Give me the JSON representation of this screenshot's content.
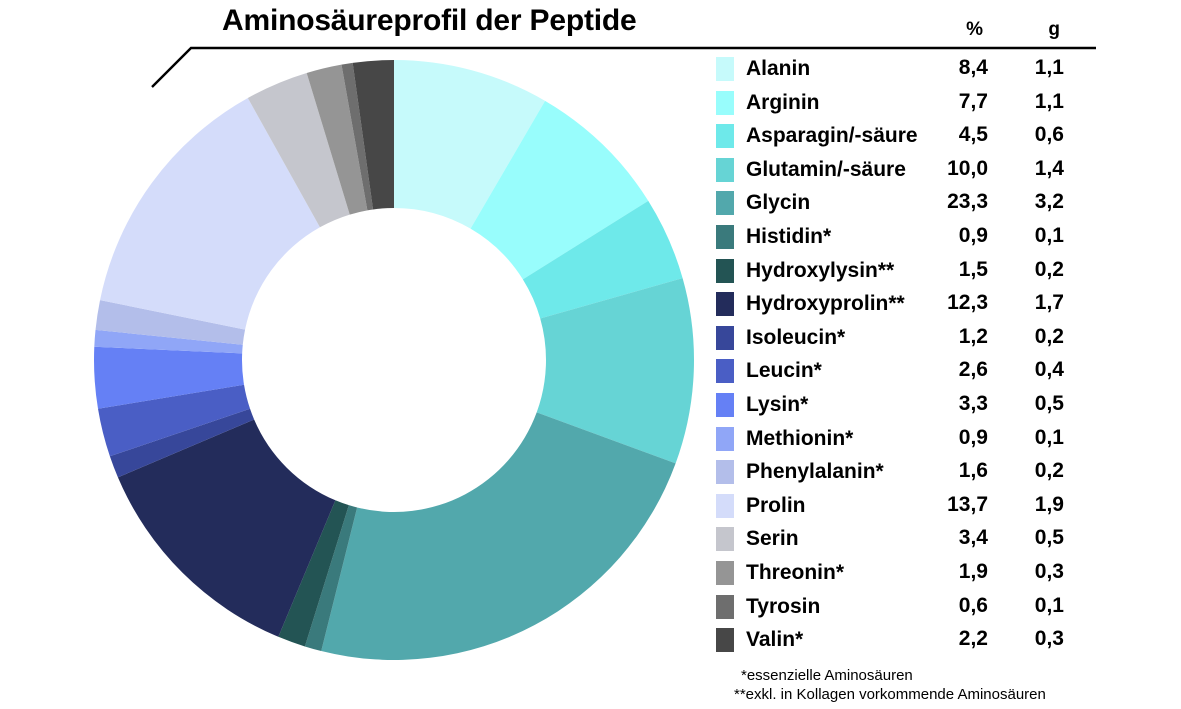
{
  "chart_data": {
    "type": "pie",
    "style": "donut",
    "title": "Aminosäureprofil der Peptide",
    "column_headers": {
      "percent": "%",
      "grams": "g"
    },
    "slices": [
      {
        "name": "Alanin",
        "percent": "8,4",
        "grams": "1,1",
        "value": 8.4,
        "color": "#C6FAFB"
      },
      {
        "name": "Arginin",
        "percent": "7,7",
        "grams": "1,1",
        "value": 7.7,
        "color": "#98FDFC"
      },
      {
        "name": "Asparagin/-säure",
        "percent": "4,5",
        "grams": "0,6",
        "value": 4.5,
        "color": "#6EE9EA"
      },
      {
        "name": "Glutamin/-säure",
        "percent": "10,0",
        "grams": "1,4",
        "value": 10.0,
        "color": "#66D4D5"
      },
      {
        "name": "Glycin",
        "percent": "23,3",
        "grams": "3,2",
        "value": 23.3,
        "color": "#52A8AC"
      },
      {
        "name": "Histidin*",
        "percent": "0,9",
        "grams": "0,1",
        "value": 0.9,
        "color": "#3A7A7C"
      },
      {
        "name": "Hydroxylysin**",
        "percent": "1,5",
        "grams": "0,2",
        "value": 1.5,
        "color": "#235454"
      },
      {
        "name": "Hydroxyprolin**",
        "percent": "12,3",
        "grams": "1,7",
        "value": 12.3,
        "color": "#232C5B"
      },
      {
        "name": "Isoleucin*",
        "percent": "1,2",
        "grams": "0,2",
        "value": 1.2,
        "color": "#37479A"
      },
      {
        "name": "Leucin*",
        "percent": "2,6",
        "grams": "0,4",
        "value": 2.6,
        "color": "#4A5EC5"
      },
      {
        "name": "Lysin*",
        "percent": "3,3",
        "grams": "0,5",
        "value": 3.3,
        "color": "#6580F5"
      },
      {
        "name": "Methionin*",
        "percent": "0,9",
        "grams": "0,1",
        "value": 0.9,
        "color": "#90A6F7"
      },
      {
        "name": "Phenylalanin*",
        "percent": "1,6",
        "grams": "0,2",
        "value": 1.6,
        "color": "#B3BEEA"
      },
      {
        "name": "Prolin",
        "percent": "13,7",
        "grams": "1,9",
        "value": 13.7,
        "color": "#D4DCFA"
      },
      {
        "name": "Serin",
        "percent": "3,4",
        "grams": "0,5",
        "value": 3.4,
        "color": "#C5C6CD"
      },
      {
        "name": "Threonin*",
        "percent": "1,9",
        "grams": "0,3",
        "value": 1.9,
        "color": "#959595"
      },
      {
        "name": "Tyrosin",
        "percent": "0,6",
        "grams": "0,1",
        "value": 0.6,
        "color": "#6E6E6E"
      },
      {
        "name": "Valin*",
        "percent": "2,2",
        "grams": "0,3",
        "value": 2.2,
        "color": "#474747"
      }
    ],
    "start_angle": "12 o'clock",
    "direction": "clockwise",
    "legend_position": "right"
  },
  "footnotes": {
    "essential": "*essenzielle Aminosäuren",
    "collagen": "**exkl. in Kollagen vorkommende Aminosäuren"
  }
}
